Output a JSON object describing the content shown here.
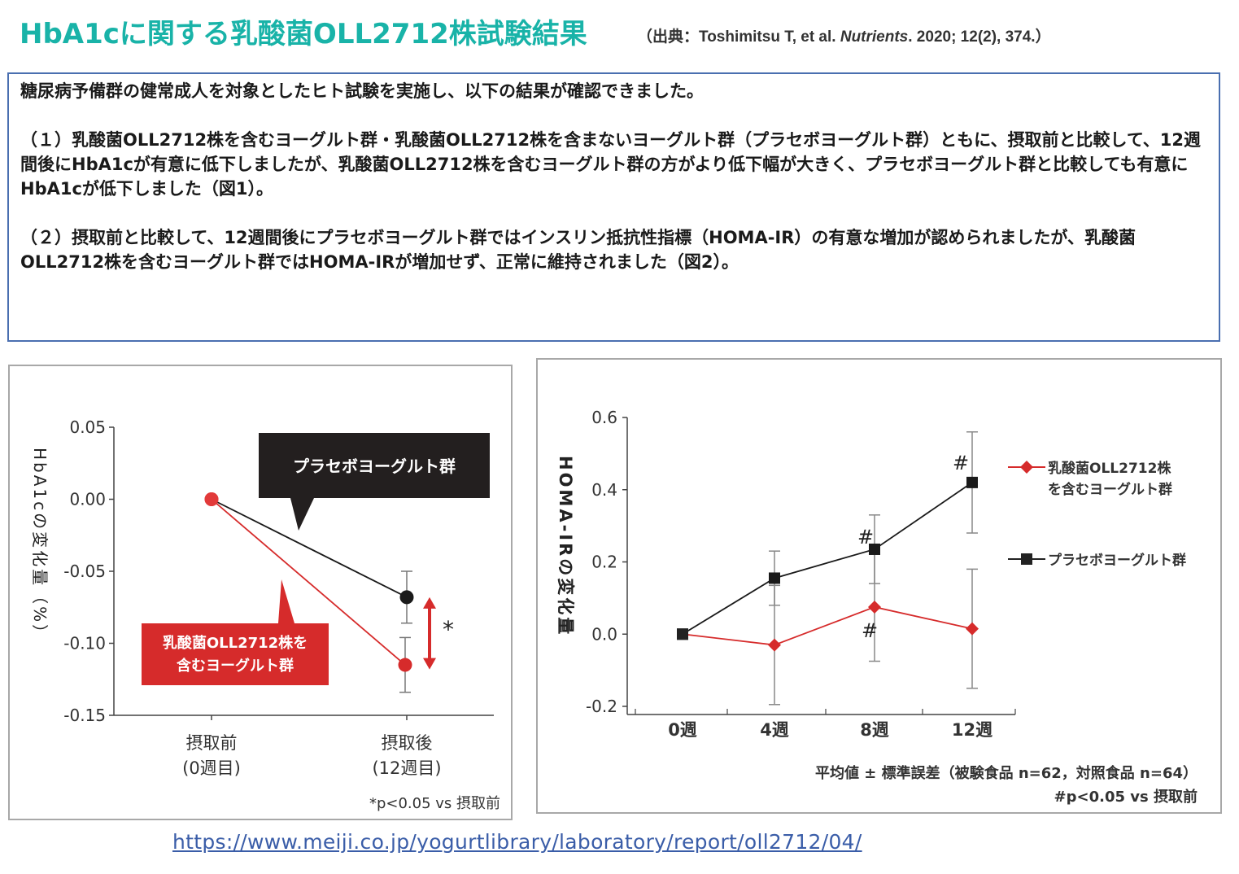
{
  "header": {
    "title": "HbA1cに関する乳酸菌OLL2712株試験結果",
    "citation_prefix": "（出典：Toshimitsu T, et al. ",
    "citation_journal": "Nutrients",
    "citation_suffix": ". 2020; 12(2), 374.）"
  },
  "summary": {
    "intro": "糖尿病予備群の健常成人を対象としたヒト試験を実施し、以下の結果が確認できました。",
    "point1": "（１）乳酸菌OLL2712株を含むヨーグルト群・乳酸菌OLL2712株を含まないヨーグルト群（プラセボヨーグルト群）ともに、摂取前と比較して、12週間後にHbA1cが有意に低下しましたが、乳酸菌OLL2712株を含むヨーグルト群の方がより低下幅が大きく、プラセボヨーグルト群と比較しても有意にHbA1cが低下しました（図1）。",
    "point2": "（２）摂取前と比較して、12週間後にプラセボヨーグルト群ではインスリン抵抗性指標（HOMA-IR）の有意な増加が認められましたが、乳酸菌OLL2712株を含むヨーグルト群ではHOMA-IRが増加せず、正常に維持されました（図2）。"
  },
  "chart_data": [
    {
      "type": "line",
      "ylabel": "HbA1cの変化量（%）",
      "categories": [
        "摂取前\n(0週目)",
        "摂取後\n(12週目)"
      ],
      "yticks": [
        "0.05",
        "0.00",
        "-0.05",
        "-0.10",
        "-0.15"
      ],
      "ylim": [
        -0.15,
        0.05
      ],
      "series": [
        {
          "name": "プラセボヨーグルト群",
          "values": [
            0.0,
            -0.068
          ],
          "err": [
            0,
            0.018
          ],
          "color": "#1a1a1a"
        },
        {
          "name": "乳酸菌OLL2712株を\n含むヨーグルト群",
          "values": [
            0.0,
            -0.115
          ],
          "err": [
            0,
            0.019
          ],
          "color": "#d62b2b"
        }
      ],
      "annotation_star": "*",
      "footnote": "*p<0.05 vs 摂取前",
      "grid": false
    },
    {
      "type": "line",
      "ylabel": "HOMA-IRの変化量",
      "categories": [
        "0週",
        "4週",
        "8週",
        "12週"
      ],
      "yticks": [
        "0.6",
        "0.4",
        "0.2",
        "0.0",
        "-0.2"
      ],
      "ylim": [
        -0.2,
        0.6
      ],
      "series": [
        {
          "name": "乳酸菌OLL2712株\nを含むヨーグルト群",
          "values": [
            0.0,
            -0.03,
            0.075,
            0.015
          ],
          "err": [
            0,
            0.165,
            0.15,
            0.165
          ],
          "color": "#d62b2b",
          "marker": "diamond"
        },
        {
          "name": "プラセボヨーグルト群",
          "values": [
            0.0,
            0.155,
            0.235,
            0.42
          ],
          "err": [
            0,
            0.075,
            0.095,
            0.14
          ],
          "color": "#1a1a1a",
          "marker": "square"
        }
      ],
      "sig_marks": [
        "#",
        "#",
        "#"
      ],
      "footnote1": "平均値 ± 標準誤差（被験食品 n=62，対照食品 n=64）",
      "footnote2": "#p<0.05 vs 摂取前",
      "grid": false
    }
  ],
  "source_url": "https://www.meiji.co.jp/yogurtlibrary/laboratory/report/oll2712/04/"
}
